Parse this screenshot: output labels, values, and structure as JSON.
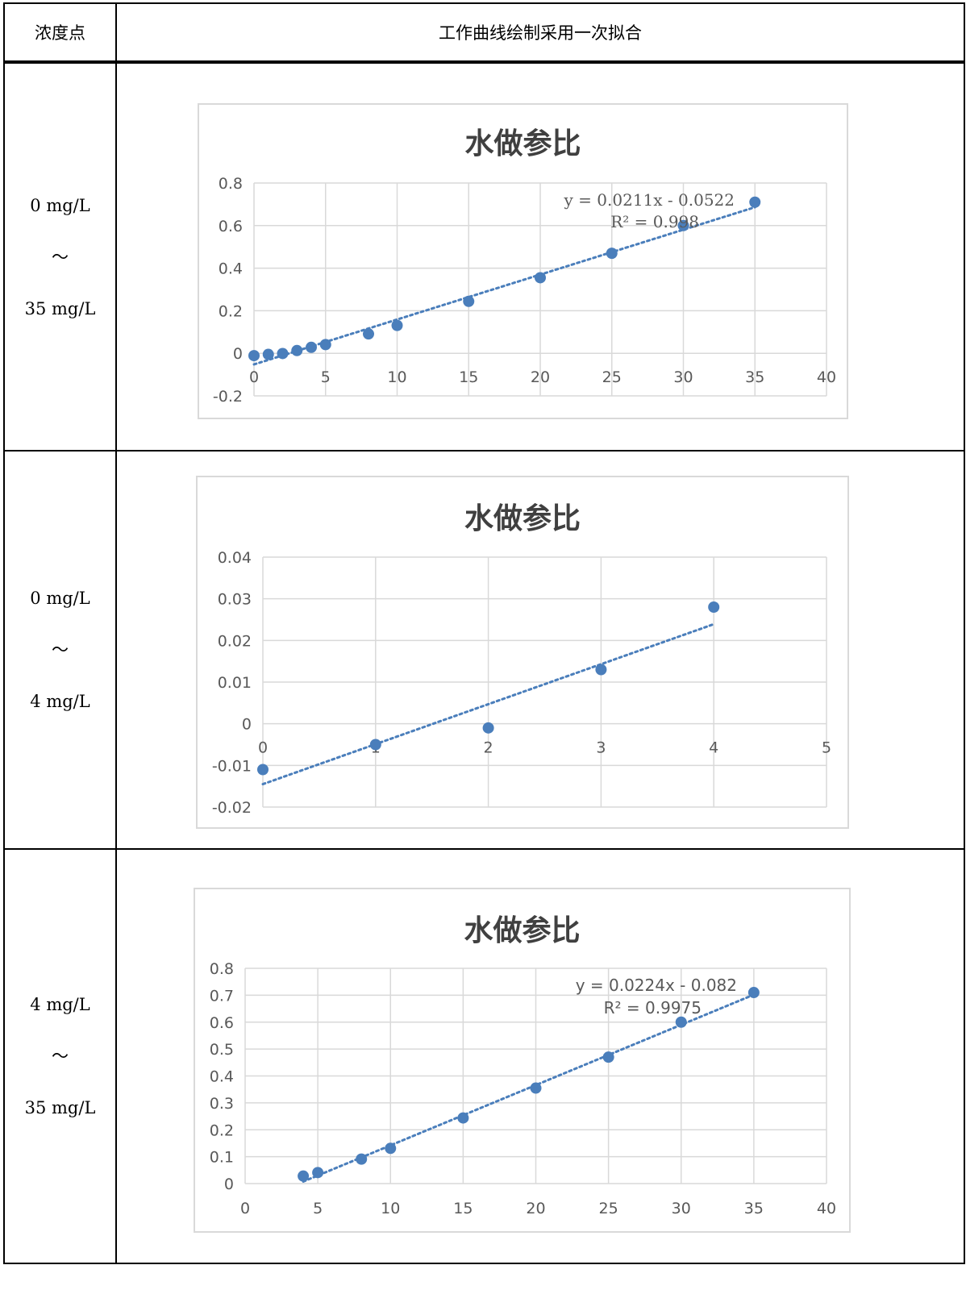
{
  "table": {
    "col1_header": "浓度点",
    "col2_header": "工作曲线绘制采用一次拟合"
  },
  "rows": [
    {
      "range_from": "0 mg/L",
      "tilde": "～",
      "range_to": "35 mg/L"
    },
    {
      "range_from": "0 mg/L",
      "tilde": "～",
      "range_to": "4 mg/L"
    },
    {
      "range_from": "4 mg/L",
      "tilde": "～",
      "range_to": "35 mg/L"
    }
  ],
  "chart_data": [
    {
      "type": "scatter",
      "title": "水做参比",
      "xlim": [
        0,
        40
      ],
      "xticks": [
        0,
        5,
        10,
        15,
        20,
        25,
        30,
        35,
        40
      ],
      "ylim": [
        -0.2,
        0.8
      ],
      "yticks": [
        -0.2,
        0,
        0.2,
        0.4,
        0.6,
        0.8
      ],
      "ytick_labels": [
        "-0.2",
        "0",
        "0.2",
        "0.4",
        "0.6",
        "0.8"
      ],
      "grid": true,
      "x": [
        0,
        1,
        2,
        3,
        4,
        5,
        8,
        10,
        15,
        20,
        25,
        30,
        35
      ],
      "y": [
        -0.011,
        -0.005,
        -0.001,
        0.013,
        0.028,
        0.041,
        0.091,
        0.131,
        0.244,
        0.355,
        0.47,
        0.6,
        0.71
      ],
      "trendline": {
        "slope": 0.0211,
        "intercept": -0.0522,
        "x_range": [
          0,
          35
        ]
      },
      "equation": "y = 0.0211x - 0.0522",
      "r2": "R² = 0.998",
      "marker_color": "#4a7ebb"
    },
    {
      "type": "scatter",
      "title": "水做参比",
      "xlim": [
        0,
        5
      ],
      "xticks": [
        0,
        1,
        2,
        3,
        4,
        5
      ],
      "ylim": [
        -0.02,
        0.04
      ],
      "yticks": [
        -0.02,
        -0.01,
        0,
        0.01,
        0.02,
        0.03,
        0.04
      ],
      "ytick_labels": [
        "-0.02",
        "-0.01",
        "0",
        "0.01",
        "0.02",
        "0.03",
        "0.04"
      ],
      "grid": true,
      "x": [
        0,
        1,
        2,
        3,
        4
      ],
      "y": [
        -0.011,
        -0.005,
        -0.001,
        0.013,
        0.028
      ],
      "trendline": {
        "slope": 0.0096,
        "intercept": -0.0145,
        "x_range": [
          0,
          4
        ]
      },
      "marker_color": "#4a7ebb"
    },
    {
      "type": "scatter",
      "title": "水做参比",
      "xlim": [
        0,
        40
      ],
      "xticks": [
        0,
        5,
        10,
        15,
        20,
        25,
        30,
        35,
        40
      ],
      "ylim": [
        0,
        0.8
      ],
      "yticks": [
        0,
        0.1,
        0.2,
        0.3,
        0.4,
        0.5,
        0.6,
        0.7,
        0.8
      ],
      "ytick_labels": [
        "0",
        "0.1",
        "0.2",
        "0.3",
        "0.4",
        "0.5",
        "0.6",
        "0.7",
        "0.8"
      ],
      "grid": true,
      "x": [
        4,
        5,
        8,
        10,
        15,
        20,
        25,
        30,
        35
      ],
      "y": [
        0.028,
        0.041,
        0.091,
        0.131,
        0.244,
        0.355,
        0.47,
        0.6,
        0.71
      ],
      "trendline": {
        "slope": 0.0224,
        "intercept": -0.082,
        "x_range": [
          4,
          35
        ]
      },
      "equation": "y = 0.0224x - 0.082",
      "r2": "R² = 0.9975",
      "marker_color": "#4a7ebb"
    }
  ]
}
